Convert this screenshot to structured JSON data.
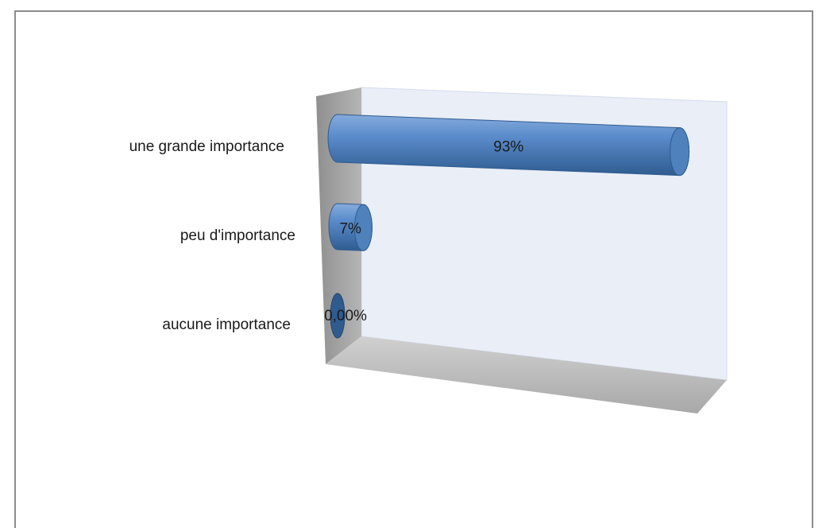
{
  "chart_data": {
    "type": "bar",
    "orientation": "horizontal",
    "style": "3d-cylinder",
    "categories": [
      "une grande importance",
      "peu d'importance",
      "aucune importance"
    ],
    "values": [
      93,
      7,
      0
    ],
    "value_labels": [
      "93%",
      "7%",
      "0,00%"
    ],
    "xlim": [
      0,
      100
    ],
    "grid": false,
    "legend": "none",
    "colors": {
      "bar": "#4f81bd",
      "bar_dark": "#2f5b8f",
      "bar_light": "#7fa8dc",
      "back_wall": "#e9eef7",
      "side_wall": "#a6a6a6",
      "floor": "#bfbfbf"
    }
  }
}
